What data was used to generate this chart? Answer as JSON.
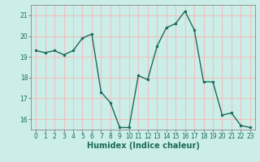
{
  "x": [
    0,
    1,
    2,
    3,
    4,
    5,
    6,
    7,
    8,
    9,
    10,
    11,
    12,
    13,
    14,
    15,
    16,
    17,
    18,
    19,
    20,
    21,
    22,
    23
  ],
  "y": [
    19.3,
    19.2,
    19.3,
    19.1,
    19.3,
    19.9,
    20.1,
    17.3,
    16.8,
    15.6,
    15.6,
    18.1,
    17.9,
    19.5,
    20.4,
    20.6,
    21.2,
    20.3,
    17.8,
    17.8,
    16.2,
    16.3,
    15.7,
    15.6
  ],
  "line_color": "#1a6b5a",
  "marker_color": "#1a6b5a",
  "bg_color": "#cceee8",
  "grid_major_color": "#f0c0c0",
  "grid_minor_color": "#ddeee8",
  "xlabel": "Humidex (Indice chaleur)",
  "ylabel": "",
  "xlim": [
    -0.5,
    23.5
  ],
  "ylim": [
    15.5,
    21.5
  ],
  "yticks": [
    16,
    17,
    18,
    19,
    20,
    21
  ],
  "xticks": [
    0,
    1,
    2,
    3,
    4,
    5,
    6,
    7,
    8,
    9,
    10,
    11,
    12,
    13,
    14,
    15,
    16,
    17,
    18,
    19,
    20,
    21,
    22,
    23
  ],
  "tick_fontsize": 5.5,
  "xlabel_fontsize": 7,
  "linewidth": 1.0,
  "markersize": 2.0
}
